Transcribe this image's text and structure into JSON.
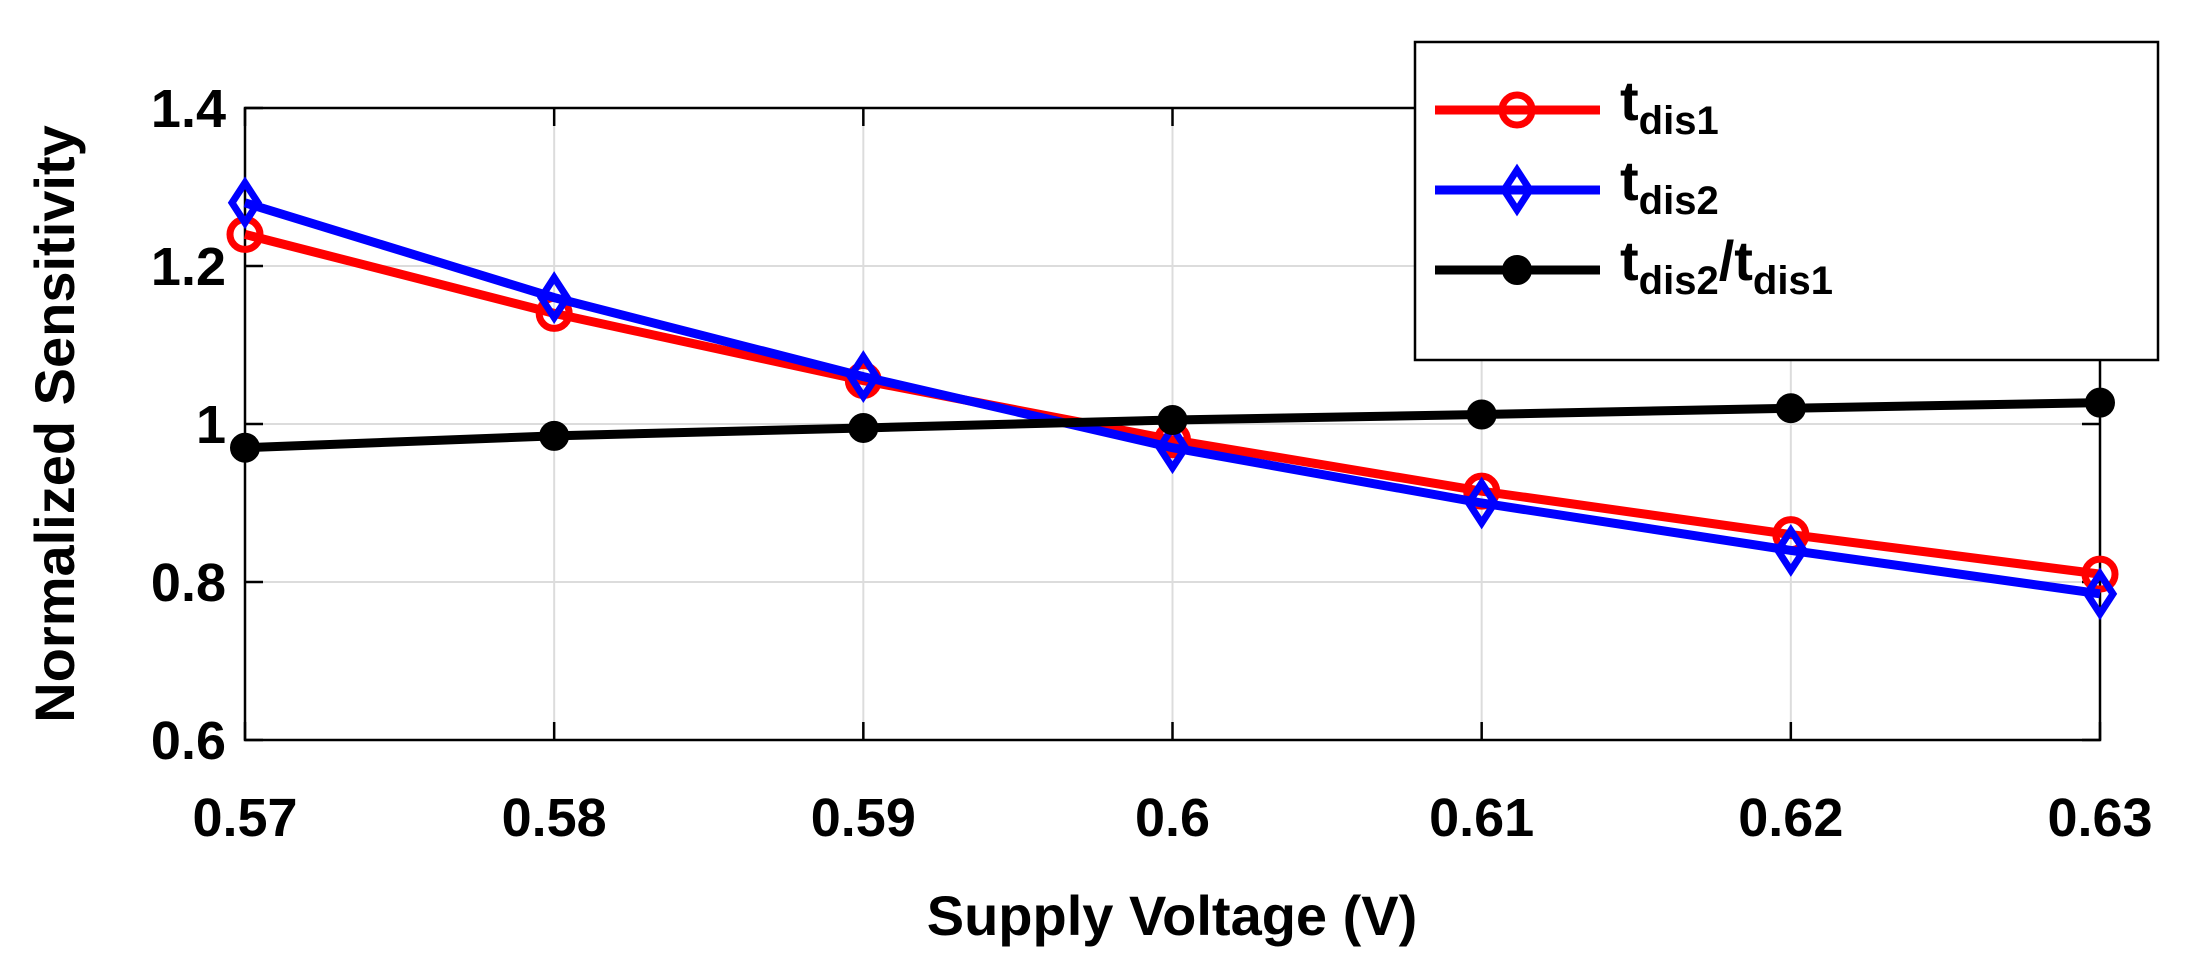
{
  "chart_data": {
    "type": "line",
    "title": "",
    "xlabel": "Supply Voltage (V)",
    "ylabel": "Normalized Sensitivity",
    "xlim": [
      0.57,
      0.63
    ],
    "ylim": [
      0.6,
      1.4
    ],
    "grid": true,
    "legend_position": "top-right",
    "x": [
      0.57,
      0.58,
      0.59,
      0.6,
      0.61,
      0.62,
      0.63
    ],
    "x_tick_labels": [
      "0.57",
      "0.58",
      "0.59",
      "0.6",
      "0.61",
      "0.62",
      "0.63"
    ],
    "y_ticks": [
      0.6,
      0.8,
      1.0,
      1.2,
      1.4
    ],
    "y_tick_labels": [
      "0.6",
      "0.8",
      "1",
      "1.2",
      "1.4"
    ],
    "series": [
      {
        "name": "t_dis1",
        "legend_main": "t",
        "legend_sub": "dis1",
        "color": "#ff0000",
        "marker": "circle",
        "values": [
          1.24,
          1.14,
          1.055,
          0.98,
          0.915,
          0.86,
          0.81
        ]
      },
      {
        "name": "t_dis2",
        "legend_main": "t",
        "legend_sub": "dis2",
        "color": "#0000ff",
        "marker": "diamond",
        "values": [
          1.28,
          1.16,
          1.06,
          0.97,
          0.9,
          0.84,
          0.785
        ]
      },
      {
        "name": "t_dis2/t_dis1",
        "legend_main": "t",
        "legend_sub": "dis2",
        "legend_sep": "/t",
        "legend_sub2": "dis1",
        "color": "#000000",
        "marker": "filled-circle",
        "values": [
          0.97,
          0.985,
          0.995,
          1.005,
          1.012,
          1.02,
          1.027
        ]
      }
    ]
  }
}
